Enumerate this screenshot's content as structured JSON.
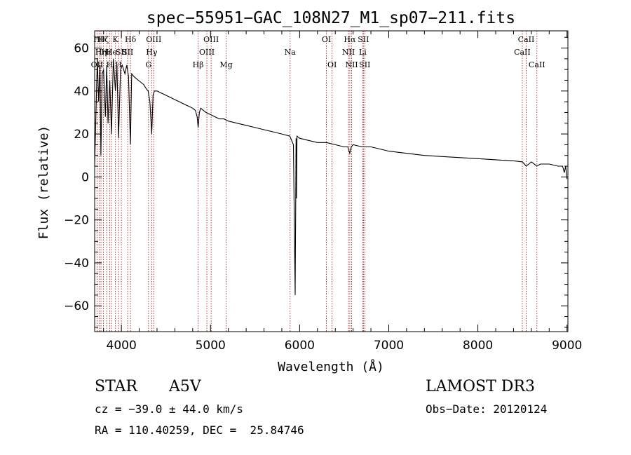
{
  "chart_data": {
    "type": "line",
    "title": "spec−55951−GAC_108N27_M1_sp07−211.fits",
    "xlabel": "Wavelength (Å)",
    "ylabel": "Flux (relative)",
    "xlim": [
      3700,
      9010
    ],
    "ylim": [
      -72,
      68
    ],
    "xticks": [
      4000,
      5000,
      6000,
      7000,
      8000,
      9000
    ],
    "xtick_labels": [
      "4000",
      "5000",
      "6000",
      "7000",
      "8000",
      "9000"
    ],
    "yticks": [
      -60,
      -40,
      -20,
      0,
      20,
      40,
      60
    ],
    "ytick_labels": [
      "−60",
      "−40",
      "−20",
      "0",
      "20",
      "40",
      "60"
    ],
    "grid": false,
    "line_color": "#000000",
    "marker_color": "#b22222",
    "series": [
      {
        "name": "flux",
        "x": [
          3700,
          3715,
          3730,
          3745,
          3760,
          3770,
          3785,
          3800,
          3820,
          3835,
          3850,
          3870,
          3889,
          3910,
          3933,
          3950,
          3968,
          3990,
          4010,
          4040,
          4060,
          4080,
          4101,
          4115,
          4135,
          4160,
          4190,
          4220,
          4250,
          4280,
          4300,
          4320,
          4340,
          4355,
          4370,
          4400,
          4450,
          4500,
          4550,
          4600,
          4650,
          4700,
          4750,
          4800,
          4830,
          4850,
          4861,
          4875,
          4890,
          4920,
          4950,
          5000,
          5050,
          5100,
          5150,
          5200,
          5300,
          5400,
          5500,
          5600,
          5700,
          5800,
          5890,
          5930,
          5950,
          5960,
          5965,
          5970,
          6000,
          6100,
          6200,
          6300,
          6400,
          6500,
          6540,
          6563,
          6580,
          6600,
          6700,
          6800,
          6900,
          7000,
          7200,
          7400,
          7600,
          7800,
          8000,
          8200,
          8400,
          8500,
          8542,
          8600,
          8662,
          8700,
          8800,
          8900,
          8950,
          8970,
          8985,
          9000
        ],
        "y": [
          5,
          30,
          55,
          35,
          52,
          10,
          48,
          50,
          28,
          52,
          25,
          45,
          20,
          55,
          40,
          52,
          18,
          50,
          52,
          48,
          52,
          47,
          15,
          48,
          47,
          46,
          45,
          44,
          43,
          41,
          40,
          35,
          20,
          38,
          40,
          40,
          39,
          38,
          37,
          36,
          35,
          34,
          33,
          32,
          31,
          28,
          23,
          30,
          32,
          31,
          30,
          29,
          28,
          27,
          27,
          26,
          25,
          24,
          23,
          22,
          21,
          20,
          19,
          15,
          -55,
          18,
          -10,
          19,
          18,
          17,
          16,
          16,
          15,
          14,
          14,
          11,
          14,
          15,
          14,
          14,
          13,
          12,
          11,
          10,
          9.5,
          9,
          8.5,
          8,
          7.5,
          7,
          5,
          7,
          5,
          6,
          6,
          5,
          5,
          2,
          5,
          -1
        ]
      }
    ],
    "line_markers": [
      {
        "x": 3727,
        "row": 2,
        "text": "OII"
      },
      {
        "x": 3750,
        "row": 0,
        "text": "Hθ"
      },
      {
        "x": 3771,
        "row": 1,
        "text": "Hη"
      },
      {
        "x": 3798,
        "row": 0,
        "text": "Hζ"
      },
      {
        "x": 3835,
        "row": 1,
        "text": "Hε"
      },
      {
        "x": 3869,
        "row": 2,
        "text": "H"
      },
      {
        "x": 3889,
        "row": 1,
        "text": "He"
      },
      {
        "x": 3933,
        "row": 0,
        "text": "K"
      },
      {
        "x": 3968,
        "row": 2,
        "text": "H"
      },
      {
        "x": 4000,
        "row": 1,
        "text": "SII"
      },
      {
        "x": 4071,
        "row": 1,
        "text": "SII"
      },
      {
        "x": 4102,
        "row": 0,
        "text": "Hδ"
      },
      {
        "x": 4304,
        "row": 2,
        "text": "G"
      },
      {
        "x": 4340,
        "row": 1,
        "text": "Hγ"
      },
      {
        "x": 4363,
        "row": 0,
        "text": "OIII"
      },
      {
        "x": 4861,
        "row": 2,
        "text": "Hβ"
      },
      {
        "x": 4959,
        "row": 1,
        "text": "OIII"
      },
      {
        "x": 5007,
        "row": 0,
        "text": "OIII"
      },
      {
        "x": 5175,
        "row": 2,
        "text": "Mg"
      },
      {
        "x": 5893,
        "row": 1,
        "text": "Na"
      },
      {
        "x": 6300,
        "row": 0,
        "text": "OI"
      },
      {
        "x": 6364,
        "row": 2,
        "text": "OI"
      },
      {
        "x": 6548,
        "row": 1,
        "text": "NII"
      },
      {
        "x": 6563,
        "row": 0,
        "text": "Hα"
      },
      {
        "x": 6583,
        "row": 2,
        "text": "NII"
      },
      {
        "x": 6708,
        "row": 1,
        "text": "Li"
      },
      {
        "x": 6716,
        "row": 0,
        "text": "SII"
      },
      {
        "x": 6731,
        "row": 2,
        "text": "SII"
      },
      {
        "x": 8498,
        "row": 1,
        "text": "CaII"
      },
      {
        "x": 8542,
        "row": 0,
        "text": "CaII"
      },
      {
        "x": 8662,
        "row": 2,
        "text": "CaII"
      }
    ]
  },
  "info": {
    "object_class": "STAR",
    "subclass": "A5V",
    "survey": "LAMOST DR3",
    "redshift": "cz = −39.0 ± 44.0 km/s",
    "obs_date": "Obs−Date: 20120124",
    "coords": "RA = 110.40259, DEC =  25.84746"
  }
}
